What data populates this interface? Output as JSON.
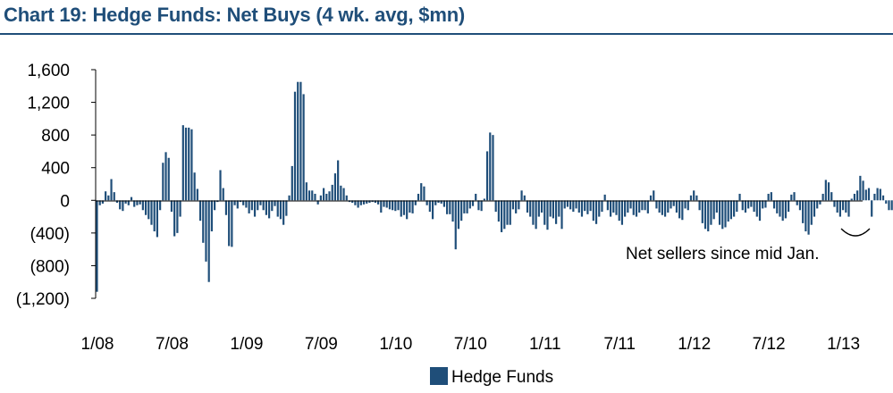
{
  "chart_data": {
    "type": "bar",
    "title": "Chart 19: Hedge Funds: Net Buys (4 wk. avg, $mn)",
    "ylabel": "",
    "xlabel": "",
    "ylim": [
      -1200,
      1600
    ],
    "y_ticks": [
      {
        "value": 1600,
        "label": "1,600"
      },
      {
        "value": 1200,
        "label": "1,200"
      },
      {
        "value": 800,
        "label": "800"
      },
      {
        "value": 400,
        "label": "400"
      },
      {
        "value": 0,
        "label": "0"
      },
      {
        "value": -400,
        "label": "(400)"
      },
      {
        "value": -800,
        "label": "(800)"
      },
      {
        "value": -1200,
        "label": "(1,200)"
      }
    ],
    "x_ticks": [
      {
        "week": 0,
        "label": "1/08"
      },
      {
        "week": 26,
        "label": "7/08"
      },
      {
        "week": 52,
        "label": "1/09"
      },
      {
        "week": 78,
        "label": "7/09"
      },
      {
        "week": 104,
        "label": "1/10"
      },
      {
        "week": 130,
        "label": "7/10"
      },
      {
        "week": 156,
        "label": "1/11"
      },
      {
        "week": 182,
        "label": "7/11"
      },
      {
        "week": 208,
        "label": "1/12"
      },
      {
        "week": 234,
        "label": "7/12"
      },
      {
        "week": 260,
        "label": "1/13"
      }
    ],
    "series": [
      {
        "name": "Hedge Funds",
        "color": "#1f4e79",
        "x_start": "1/08",
        "frequency": "weekly",
        "values": [
          -1120,
          -60,
          -40,
          110,
          60,
          260,
          100,
          -30,
          -110,
          -130,
          -40,
          -60,
          40,
          -80,
          -60,
          -50,
          -120,
          -180,
          -230,
          -300,
          -380,
          -450,
          -120,
          460,
          590,
          520,
          -140,
          -440,
          -400,
          -200,
          920,
          890,
          890,
          870,
          340,
          140,
          -250,
          -520,
          -750,
          -1000,
          -380,
          -120,
          -20,
          370,
          150,
          -180,
          -560,
          -570,
          -60,
          -100,
          -20,
          -60,
          -90,
          -160,
          -120,
          -200,
          -120,
          -60,
          -120,
          -180,
          -220,
          -130,
          -70,
          -200,
          -230,
          -300,
          -190,
          60,
          420,
          1330,
          1450,
          1450,
          1300,
          220,
          120,
          120,
          80,
          -50,
          60,
          150,
          80,
          110,
          190,
          330,
          490,
          180,
          150,
          60,
          -20,
          -30,
          -60,
          -90,
          -60,
          -50,
          -40,
          -30,
          -20,
          -30,
          -50,
          -150,
          -80,
          -90,
          -110,
          -120,
          -130,
          -120,
          -200,
          -180,
          -230,
          -150,
          -160,
          -60,
          80,
          210,
          170,
          -60,
          -140,
          -230,
          -60,
          -30,
          -40,
          -80,
          -170,
          -170,
          -260,
          -600,
          -350,
          -250,
          -160,
          -160,
          -100,
          -70,
          80,
          -120,
          -130,
          20,
          600,
          830,
          800,
          -140,
          -260,
          -390,
          -350,
          -300,
          -300,
          -110,
          -160,
          -110,
          120,
          60,
          -150,
          -200,
          -300,
          -350,
          -200,
          -150,
          -300,
          -360,
          -200,
          -220,
          -290,
          -200,
          -350,
          -100,
          -80,
          -110,
          -140,
          -100,
          -150,
          -200,
          -130,
          -170,
          -130,
          -250,
          -290,
          -200,
          -140,
          70,
          -120,
          -200,
          -150,
          -180,
          -250,
          -300,
          -200,
          -150,
          -100,
          -180,
          -200,
          -150,
          -120,
          -120,
          -160,
          60,
          120,
          -100,
          -150,
          -180,
          -200,
          -150,
          -100,
          -70,
          -150,
          -220,
          -240,
          -100,
          -120,
          60,
          120,
          60,
          -120,
          -280,
          -350,
          -380,
          -300,
          -230,
          -150,
          -300,
          -350,
          -330,
          -260,
          -230,
          -200,
          -140,
          80,
          -120,
          -150,
          -100,
          -80,
          -140,
          -200,
          -250,
          -100,
          -90,
          80,
          100,
          -100,
          -160,
          -200,
          -250,
          -220,
          -140,
          70,
          100,
          -60,
          -120,
          -280,
          -380,
          -420,
          -300,
          -200,
          -100,
          -50,
          80,
          250,
          220,
          100,
          -80,
          -150,
          -200,
          -120,
          -150,
          -200,
          20,
          80,
          120,
          300,
          240,
          130,
          150,
          -200,
          80,
          150,
          140,
          60,
          -40,
          -120,
          -120,
          -140,
          -150,
          -170
        ]
      }
    ],
    "annotation": "Net sellers since mid Jan.",
    "legend": {
      "position": "bottom-center"
    }
  }
}
